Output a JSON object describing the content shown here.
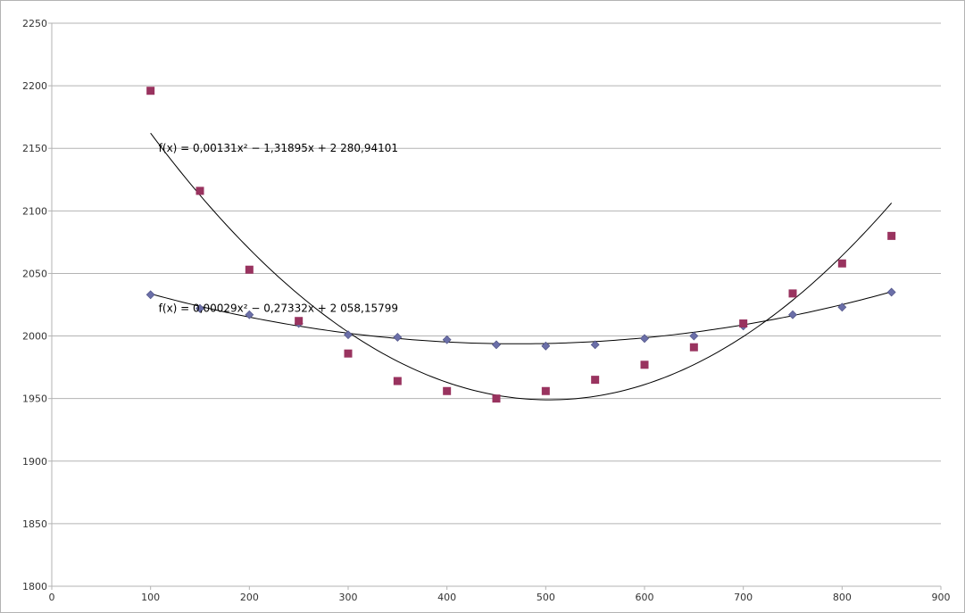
{
  "chart_data": {
    "type": "scatter",
    "xlim": [
      0,
      900
    ],
    "ylim": [
      1800,
      2250
    ],
    "x_ticks": [
      0,
      100,
      200,
      300,
      400,
      500,
      600,
      700,
      800,
      900
    ],
    "y_ticks": [
      1800,
      1850,
      1900,
      1950,
      2000,
      2050,
      2100,
      2150,
      2200,
      2250
    ],
    "grid": "horizontal",
    "legend": "none",
    "series": [
      {
        "marker": "diamond",
        "color": "#6b6fa8",
        "points": [
          [
            100,
            2033
          ],
          [
            150,
            2022
          ],
          [
            200,
            2017
          ],
          [
            250,
            2010
          ],
          [
            300,
            2001
          ],
          [
            350,
            1999
          ],
          [
            400,
            1997
          ],
          [
            450,
            1993
          ],
          [
            500,
            1992
          ],
          [
            550,
            1993
          ],
          [
            600,
            1998
          ],
          [
            650,
            2000
          ],
          [
            700,
            2008
          ],
          [
            750,
            2017
          ],
          [
            800,
            2023
          ],
          [
            850,
            2035
          ]
        ],
        "trendline": {
          "type": "polynomial",
          "degree": 2,
          "coefficients": [
            0.00029,
            -0.27332,
            2058.15799
          ],
          "x_range": [
            100,
            850
          ],
          "label": "f(x) = 0,00029x² − 0,27332x + 2 058,15799"
        }
      },
      {
        "marker": "square",
        "color": "#99335f",
        "points": [
          [
            100,
            2196
          ],
          [
            150,
            2116
          ],
          [
            200,
            2053
          ],
          [
            250,
            2012
          ],
          [
            300,
            1986
          ],
          [
            350,
            1964
          ],
          [
            400,
            1956
          ],
          [
            450,
            1950
          ],
          [
            500,
            1956
          ],
          [
            550,
            1965
          ],
          [
            600,
            1977
          ],
          [
            650,
            1991
          ],
          [
            700,
            2010
          ],
          [
            750,
            2034
          ],
          [
            800,
            2058
          ],
          [
            850,
            2080
          ]
        ],
        "trendline": {
          "type": "polynomial",
          "degree": 2,
          "coefficients": [
            0.00131,
            -1.31895,
            2280.94101
          ],
          "x_range": [
            100,
            850
          ],
          "label": "f(x) = 0,00131x² − 1,31895x + 2 280,94101"
        }
      }
    ],
    "annotation_anchors": [
      {
        "series": 1,
        "x": 100,
        "y": 2150
      },
      {
        "series": 0,
        "x": 100,
        "y": 2022
      }
    ]
  }
}
